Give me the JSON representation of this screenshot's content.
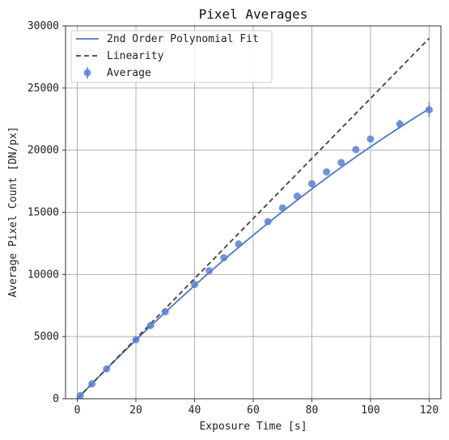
{
  "chart_data": {
    "type": "scatter",
    "title": "Pixel Averages",
    "xlabel": "Exposure Time [s]",
    "ylabel": "Average Pixel Count [DN/px]",
    "xlim": [
      -4,
      124
    ],
    "ylim": [
      0,
      30000
    ],
    "xticks": [
      0,
      20,
      40,
      60,
      80,
      100,
      120
    ],
    "yticks": [
      0,
      5000,
      10000,
      15000,
      20000,
      25000,
      30000
    ],
    "grid": true,
    "legend_position": "top-left",
    "series": [
      {
        "name": "Average",
        "kind": "scatter_with_errorbars",
        "color": "#5b7fd1",
        "x": [
          1,
          5,
          10,
          20,
          25,
          30,
          40,
          45,
          50,
          55,
          65,
          70,
          75,
          80,
          85,
          90,
          95,
          100,
          110,
          120
        ],
        "y": [
          250,
          1200,
          2400,
          4750,
          5900,
          7000,
          9200,
          10300,
          11350,
          12450,
          14250,
          15350,
          16300,
          17300,
          18250,
          19000,
          20050,
          20900,
          22100,
          23250
        ],
        "yerr": [
          0,
          0,
          0,
          0,
          0,
          0,
          0,
          0,
          0,
          0,
          0,
          0,
          0,
          0,
          0,
          0,
          0,
          0,
          350,
          600
        ]
      },
      {
        "name": "2nd Order Polynomial Fit",
        "kind": "line",
        "color": "#4a78c9",
        "style": "solid",
        "coefficients": [
          0,
          244.2,
          -0.415
        ],
        "x_range": [
          0,
          120
        ]
      },
      {
        "name": "Linearity",
        "kind": "line",
        "color": "#404040",
        "style": "dashed",
        "x": [
          0,
          120
        ],
        "y": [
          0,
          29000
        ]
      }
    ]
  }
}
